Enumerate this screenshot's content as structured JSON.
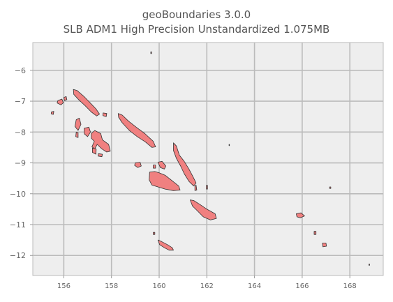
{
  "figure": {
    "title_line1": "geoBoundaries 3.0.0",
    "title_line2": "SLB ADM1 High Precision Unstandardized 1.075MB"
  },
  "chart_data": {
    "type": "map",
    "xlim": [
      154.7,
      169.4
    ],
    "ylim": [
      -12.65,
      -5.1
    ],
    "grid": true,
    "x_ticks": [
      156,
      158,
      160,
      162,
      164,
      166,
      168
    ],
    "y_ticks": [
      -6,
      -7,
      -8,
      -9,
      -10,
      -11,
      -12
    ],
    "x_tick_labels": [
      "156",
      "158",
      "160",
      "162",
      "164",
      "166",
      "168"
    ],
    "y_tick_labels": [
      "−6",
      "−7",
      "−8",
      "−9",
      "−10",
      "−11",
      "−12"
    ],
    "colors": {
      "fill": "#f08080",
      "edge": "#333333",
      "plot_background": "#eeeeee",
      "grid": "#bbbbbb"
    },
    "regions": [
      {
        "id": "shortland",
        "points": [
          [
            155.75,
            -6.98
          ],
          [
            155.92,
            -6.93
          ],
          [
            155.98,
            -7.05
          ],
          [
            155.88,
            -7.12
          ],
          [
            155.72,
            -7.06
          ]
        ]
      },
      {
        "id": "treasury",
        "points": [
          [
            155.48,
            -7.35
          ],
          [
            155.58,
            -7.33
          ],
          [
            155.56,
            -7.43
          ],
          [
            155.47,
            -7.41
          ]
        ]
      },
      {
        "id": "fauro",
        "points": [
          [
            156.0,
            -6.88
          ],
          [
            156.1,
            -6.85
          ],
          [
            156.13,
            -6.95
          ],
          [
            156.03,
            -6.98
          ]
        ]
      },
      {
        "id": "choiseul",
        "points": [
          [
            156.4,
            -6.62
          ],
          [
            156.55,
            -6.65
          ],
          [
            156.85,
            -6.85
          ],
          [
            157.1,
            -7.05
          ],
          [
            157.35,
            -7.25
          ],
          [
            157.5,
            -7.42
          ],
          [
            157.38,
            -7.48
          ],
          [
            157.15,
            -7.35
          ],
          [
            156.9,
            -7.15
          ],
          [
            156.62,
            -6.95
          ],
          [
            156.42,
            -6.78
          ]
        ]
      },
      {
        "id": "wagina",
        "points": [
          [
            157.65,
            -7.38
          ],
          [
            157.8,
            -7.4
          ],
          [
            157.78,
            -7.5
          ],
          [
            157.64,
            -7.47
          ]
        ]
      },
      {
        "id": "vella-lavella",
        "points": [
          [
            156.52,
            -7.6
          ],
          [
            156.65,
            -7.55
          ],
          [
            156.72,
            -7.75
          ],
          [
            156.6,
            -7.95
          ],
          [
            156.47,
            -7.82
          ]
        ]
      },
      {
        "id": "kolombangara",
        "points": [
          [
            156.85,
            -7.88
          ],
          [
            157.05,
            -7.84
          ],
          [
            157.12,
            -8.0
          ],
          [
            157.0,
            -8.15
          ],
          [
            156.86,
            -8.06
          ]
        ]
      },
      {
        "id": "ranongga",
        "points": [
          [
            156.52,
            -8.0
          ],
          [
            156.6,
            -8.02
          ],
          [
            156.6,
            -8.18
          ],
          [
            156.5,
            -8.15
          ]
        ]
      },
      {
        "id": "new-georgia",
        "points": [
          [
            157.15,
            -8.05
          ],
          [
            157.3,
            -7.95
          ],
          [
            157.55,
            -8.05
          ],
          [
            157.62,
            -8.25
          ],
          [
            157.88,
            -8.4
          ],
          [
            157.95,
            -8.62
          ],
          [
            157.8,
            -8.65
          ],
          [
            157.6,
            -8.55
          ],
          [
            157.4,
            -8.4
          ],
          [
            157.3,
            -8.55
          ],
          [
            157.18,
            -8.48
          ],
          [
            157.28,
            -8.3
          ],
          [
            157.15,
            -8.2
          ]
        ]
      },
      {
        "id": "rendova",
        "points": [
          [
            157.2,
            -8.52
          ],
          [
            157.36,
            -8.55
          ],
          [
            157.35,
            -8.72
          ],
          [
            157.2,
            -8.66
          ]
        ]
      },
      {
        "id": "tetepare",
        "points": [
          [
            157.45,
            -8.7
          ],
          [
            157.62,
            -8.72
          ],
          [
            157.6,
            -8.8
          ],
          [
            157.44,
            -8.78
          ]
        ]
      },
      {
        "id": "santa-isabel",
        "points": [
          [
            158.28,
            -7.4
          ],
          [
            158.45,
            -7.45
          ],
          [
            158.72,
            -7.65
          ],
          [
            159.05,
            -7.85
          ],
          [
            159.4,
            -8.05
          ],
          [
            159.75,
            -8.3
          ],
          [
            159.85,
            -8.48
          ],
          [
            159.7,
            -8.5
          ],
          [
            159.42,
            -8.32
          ],
          [
            159.08,
            -8.15
          ],
          [
            158.75,
            -7.95
          ],
          [
            158.45,
            -7.7
          ],
          [
            158.3,
            -7.52
          ]
        ]
      },
      {
        "id": "russell",
        "points": [
          [
            159.0,
            -9.0
          ],
          [
            159.2,
            -8.98
          ],
          [
            159.25,
            -9.1
          ],
          [
            159.1,
            -9.15
          ],
          [
            158.97,
            -9.08
          ]
        ]
      },
      {
        "id": "florida",
        "points": [
          [
            159.95,
            -8.98
          ],
          [
            160.12,
            -8.95
          ],
          [
            160.28,
            -9.1
          ],
          [
            160.22,
            -9.2
          ],
          [
            160.05,
            -9.15
          ]
        ]
      },
      {
        "id": "savo",
        "points": [
          [
            159.75,
            -9.07
          ],
          [
            159.85,
            -9.07
          ],
          [
            159.85,
            -9.17
          ],
          [
            159.75,
            -9.17
          ]
        ]
      },
      {
        "id": "guadalcanal",
        "points": [
          [
            159.6,
            -9.3
          ],
          [
            159.82,
            -9.28
          ],
          [
            160.0,
            -9.32
          ],
          [
            160.25,
            -9.4
          ],
          [
            160.5,
            -9.55
          ],
          [
            160.82,
            -9.75
          ],
          [
            160.88,
            -9.88
          ],
          [
            160.6,
            -9.9
          ],
          [
            160.25,
            -9.85
          ],
          [
            159.95,
            -9.78
          ],
          [
            159.7,
            -9.72
          ],
          [
            159.58,
            -9.55
          ]
        ]
      },
      {
        "id": "malaita",
        "points": [
          [
            160.6,
            -8.35
          ],
          [
            160.72,
            -8.45
          ],
          [
            160.85,
            -8.75
          ],
          [
            161.05,
            -8.95
          ],
          [
            161.25,
            -9.2
          ],
          [
            161.42,
            -9.45
          ],
          [
            161.55,
            -9.65
          ],
          [
            161.45,
            -9.75
          ],
          [
            161.25,
            -9.6
          ],
          [
            161.05,
            -9.35
          ],
          [
            160.9,
            -9.1
          ],
          [
            160.72,
            -8.85
          ],
          [
            160.6,
            -8.6
          ]
        ]
      },
      {
        "id": "small-malaita",
        "points": [
          [
            161.5,
            -9.75
          ],
          [
            161.55,
            -9.72
          ],
          [
            161.58,
            -9.88
          ],
          [
            161.5,
            -9.9
          ]
        ]
      },
      {
        "id": "makira",
        "points": [
          [
            161.3,
            -10.2
          ],
          [
            161.45,
            -10.22
          ],
          [
            161.72,
            -10.35
          ],
          [
            162.0,
            -10.5
          ],
          [
            162.35,
            -10.65
          ],
          [
            162.4,
            -10.8
          ],
          [
            162.15,
            -10.85
          ],
          [
            161.85,
            -10.75
          ],
          [
            161.6,
            -10.55
          ],
          [
            161.4,
            -10.4
          ]
        ]
      },
      {
        "id": "ulawa",
        "points": [
          [
            161.98,
            -9.73
          ],
          [
            162.03,
            -9.73
          ],
          [
            162.03,
            -9.85
          ],
          [
            161.98,
            -9.85
          ]
        ]
      },
      {
        "id": "rennell",
        "points": [
          [
            159.95,
            -11.5
          ],
          [
            160.1,
            -11.55
          ],
          [
            160.35,
            -11.65
          ],
          [
            160.55,
            -11.75
          ],
          [
            160.6,
            -11.83
          ],
          [
            160.42,
            -11.83
          ],
          [
            160.22,
            -11.75
          ],
          [
            160.02,
            -11.65
          ]
        ]
      },
      {
        "id": "bellona",
        "points": [
          [
            159.75,
            -11.25
          ],
          [
            159.82,
            -11.25
          ],
          [
            159.82,
            -11.32
          ],
          [
            159.75,
            -11.32
          ]
        ]
      },
      {
        "id": "nendo",
        "points": [
          [
            165.75,
            -10.65
          ],
          [
            165.95,
            -10.62
          ],
          [
            166.1,
            -10.72
          ],
          [
            165.92,
            -10.78
          ],
          [
            165.78,
            -10.75
          ]
        ]
      },
      {
        "id": "utupua",
        "points": [
          [
            166.5,
            -11.22
          ],
          [
            166.58,
            -11.22
          ],
          [
            166.58,
            -11.32
          ],
          [
            166.5,
            -11.32
          ]
        ]
      },
      {
        "id": "vanikoro",
        "points": [
          [
            166.85,
            -11.6
          ],
          [
            167.0,
            -11.6
          ],
          [
            167.02,
            -11.7
          ],
          [
            166.87,
            -11.72
          ]
        ]
      },
      {
        "id": "duff",
        "points": [
          [
            167.15,
            -9.78
          ],
          [
            167.2,
            -9.78
          ],
          [
            167.2,
            -9.83
          ],
          [
            167.15,
            -9.83
          ]
        ]
      },
      {
        "id": "ontong-java",
        "points": [
          [
            159.65,
            -5.4
          ],
          [
            159.68,
            -5.4
          ],
          [
            159.68,
            -5.46
          ],
          [
            159.65,
            -5.46
          ]
        ]
      },
      {
        "id": "sikaiana",
        "points": [
          [
            162.93,
            -8.4
          ],
          [
            162.95,
            -8.4
          ],
          [
            162.95,
            -8.44
          ],
          [
            162.93,
            -8.44
          ]
        ]
      },
      {
        "id": "fatutaka",
        "points": [
          [
            168.8,
            -12.28
          ],
          [
            168.83,
            -12.28
          ],
          [
            168.83,
            -12.32
          ],
          [
            168.8,
            -12.32
          ]
        ]
      }
    ]
  }
}
